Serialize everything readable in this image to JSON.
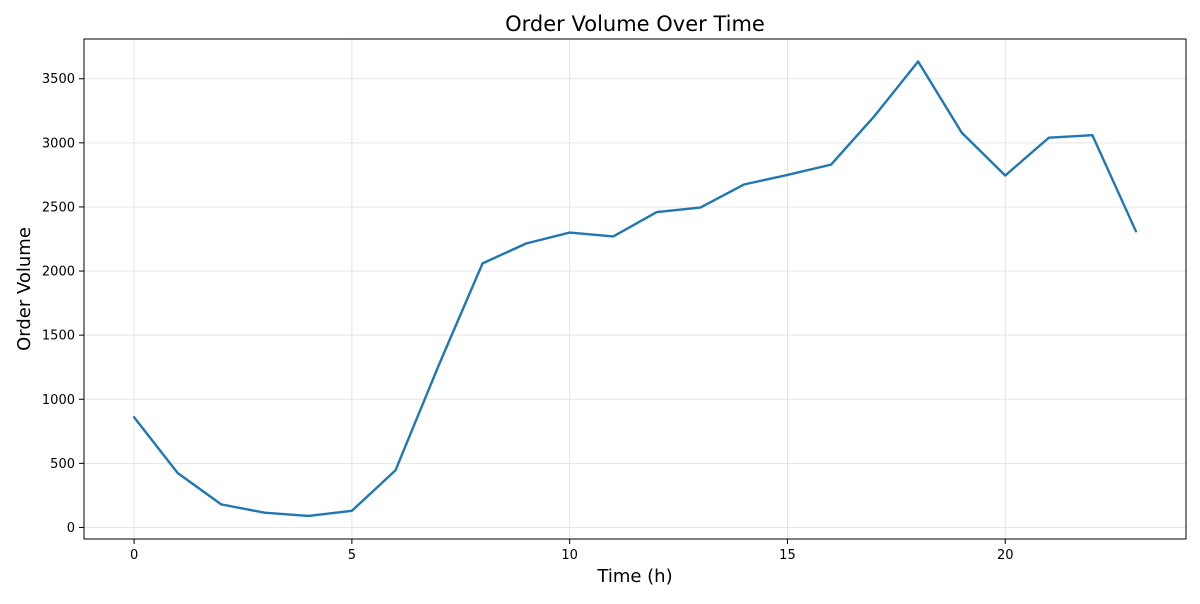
{
  "chart_data": {
    "type": "line",
    "title": "Order Volume Over Time",
    "xlabel": "Time (h)",
    "ylabel": "Order Volume",
    "xlim": [
      -1.15,
      24.15
    ],
    "ylim": [
      -90,
      3810
    ],
    "xticks": [
      0,
      5,
      10,
      15,
      20
    ],
    "yticks": [
      0,
      500,
      1000,
      1500,
      2000,
      2500,
      3000,
      3500
    ],
    "grid": true,
    "legend": "none",
    "series": [
      {
        "color": "#1f77b4",
        "x": [
          0,
          1,
          2,
          3,
          4,
          5,
          6,
          7,
          8,
          9,
          10,
          11,
          12,
          13,
          14,
          15,
          16,
          17,
          18,
          19,
          20,
          21,
          22,
          23
        ],
        "values": [
          860,
          425,
          180,
          115,
          90,
          130,
          445,
          1270,
          2060,
          2215,
          2300,
          2270,
          2460,
          2495,
          2675,
          2750,
          2830,
          3210,
          3635,
          3080,
          2745,
          3040,
          3060,
          2310
        ]
      }
    ]
  }
}
